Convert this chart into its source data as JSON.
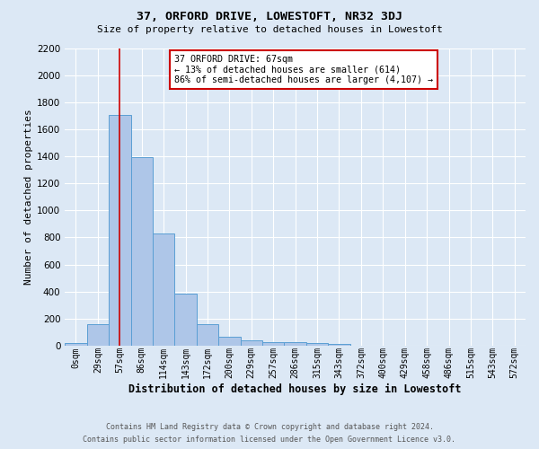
{
  "title": "37, ORFORD DRIVE, LOWESTOFT, NR32 3DJ",
  "subtitle": "Size of property relative to detached houses in Lowestoft",
  "xlabel": "Distribution of detached houses by size in Lowestoft",
  "ylabel": "Number of detached properties",
  "footer_line1": "Contains HM Land Registry data © Crown copyright and database right 2024.",
  "footer_line2": "Contains public sector information licensed under the Open Government Licence v3.0.",
  "bar_labels": [
    "0sqm",
    "29sqm",
    "57sqm",
    "86sqm",
    "114sqm",
    "143sqm",
    "172sqm",
    "200sqm",
    "229sqm",
    "257sqm",
    "286sqm",
    "315sqm",
    "343sqm",
    "372sqm",
    "400sqm",
    "429sqm",
    "458sqm",
    "486sqm",
    "515sqm",
    "543sqm",
    "572sqm"
  ],
  "bar_values": [
    15,
    155,
    1710,
    1395,
    830,
    385,
    160,
    65,
    35,
    25,
    25,
    15,
    10,
    0,
    0,
    0,
    0,
    0,
    0,
    0,
    0
  ],
  "bar_color": "#aec6e8",
  "bar_edge_color": "#5a9fd4",
  "grid_color": "#ffffff",
  "bg_color": "#dce8f5",
  "annotation_text": "37 ORFORD DRIVE: 67sqm\n← 13% of detached houses are smaller (614)\n86% of semi-detached houses are larger (4,107) →",
  "annotation_box_color": "#ffffff",
  "annotation_box_edge_color": "#cc0000",
  "vline_x": 2,
  "vline_color": "#cc0000",
  "ylim": [
    0,
    2200
  ],
  "yticks": [
    0,
    200,
    400,
    600,
    800,
    1000,
    1200,
    1400,
    1600,
    1800,
    2000,
    2200
  ]
}
